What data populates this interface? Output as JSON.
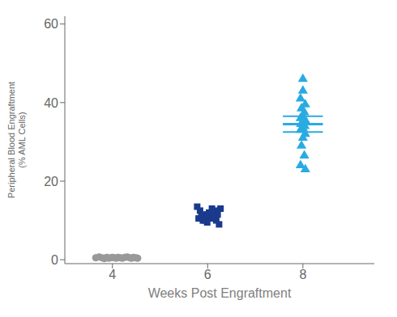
{
  "chart_data": {
    "type": "scatter",
    "xlabel": "Weeks Post Engraftment",
    "ylabel": "Peripheral Blood Engraftment\n(% AML Cells)",
    "xlim": [
      3.0,
      9.5
    ],
    "ylim": [
      -1,
      62
    ],
    "xticks": [
      4,
      6,
      8
    ],
    "yticks": [
      0,
      20,
      40,
      60
    ],
    "grid": false,
    "series": [
      {
        "color": "#999999",
        "marker": "circle",
        "x": [
          3.65,
          3.72,
          3.78,
          3.83,
          3.88,
          3.92,
          3.96,
          4,
          4.04,
          4.08,
          4.12,
          4.17,
          4.21,
          4.26,
          4.31,
          4.36,
          4.4,
          4.44,
          4.49,
          4.53
        ],
        "values": [
          0.5,
          0.7,
          0.5,
          0.3,
          0.6,
          0.4,
          0.5,
          0.6,
          0.5,
          0.4,
          0.6,
          0.5,
          0.4,
          0.6,
          0.7,
          0.5,
          0.4,
          0.6,
          0.5,
          0.4
        ]
      },
      {
        "color": "#1a3a8c",
        "marker": "square",
        "x": [
          5.78,
          5.84,
          5.9,
          5.96,
          6.03,
          6.09,
          6.15,
          6.21,
          6.27,
          5.81,
          5.87,
          5.93,
          5.99,
          6.06,
          6.12,
          6.18,
          6.24,
          5.9,
          6,
          6.1
        ],
        "values": [
          13.5,
          12.5,
          11.5,
          11.0,
          12.0,
          13.0,
          12.5,
          11.5,
          13.0,
          10.5,
          11.0,
          10.0,
          9.5,
          10.5,
          11.0,
          10.0,
          9.0,
          10.0,
          11.5,
          12.0
        ]
      },
      {
        "color": "#29abe2",
        "marker": "triangle",
        "x": [
          8,
          8,
          7.95,
          8.05,
          7.97,
          8.03,
          8,
          7.95,
          8.05,
          8,
          7.96,
          8.04,
          8,
          7.95,
          8.05,
          8,
          7.97,
          8.03,
          7.95,
          8.05
        ],
        "values": [
          46.0,
          43.0,
          41.0,
          39.5,
          38.5,
          37.5,
          36.5,
          36.0,
          35.5,
          35.0,
          34.5,
          34.0,
          33.5,
          33.0,
          32.0,
          31.0,
          29.0,
          26.5,
          24.0,
          23.0
        ]
      }
    ],
    "mean_sem": {
      "x": 8,
      "x_range": [
        7.58,
        8.42
      ],
      "mean": 34.5,
      "sem_upper": 36.5,
      "sem_lower": 32.5,
      "color": "#29abe2"
    }
  }
}
